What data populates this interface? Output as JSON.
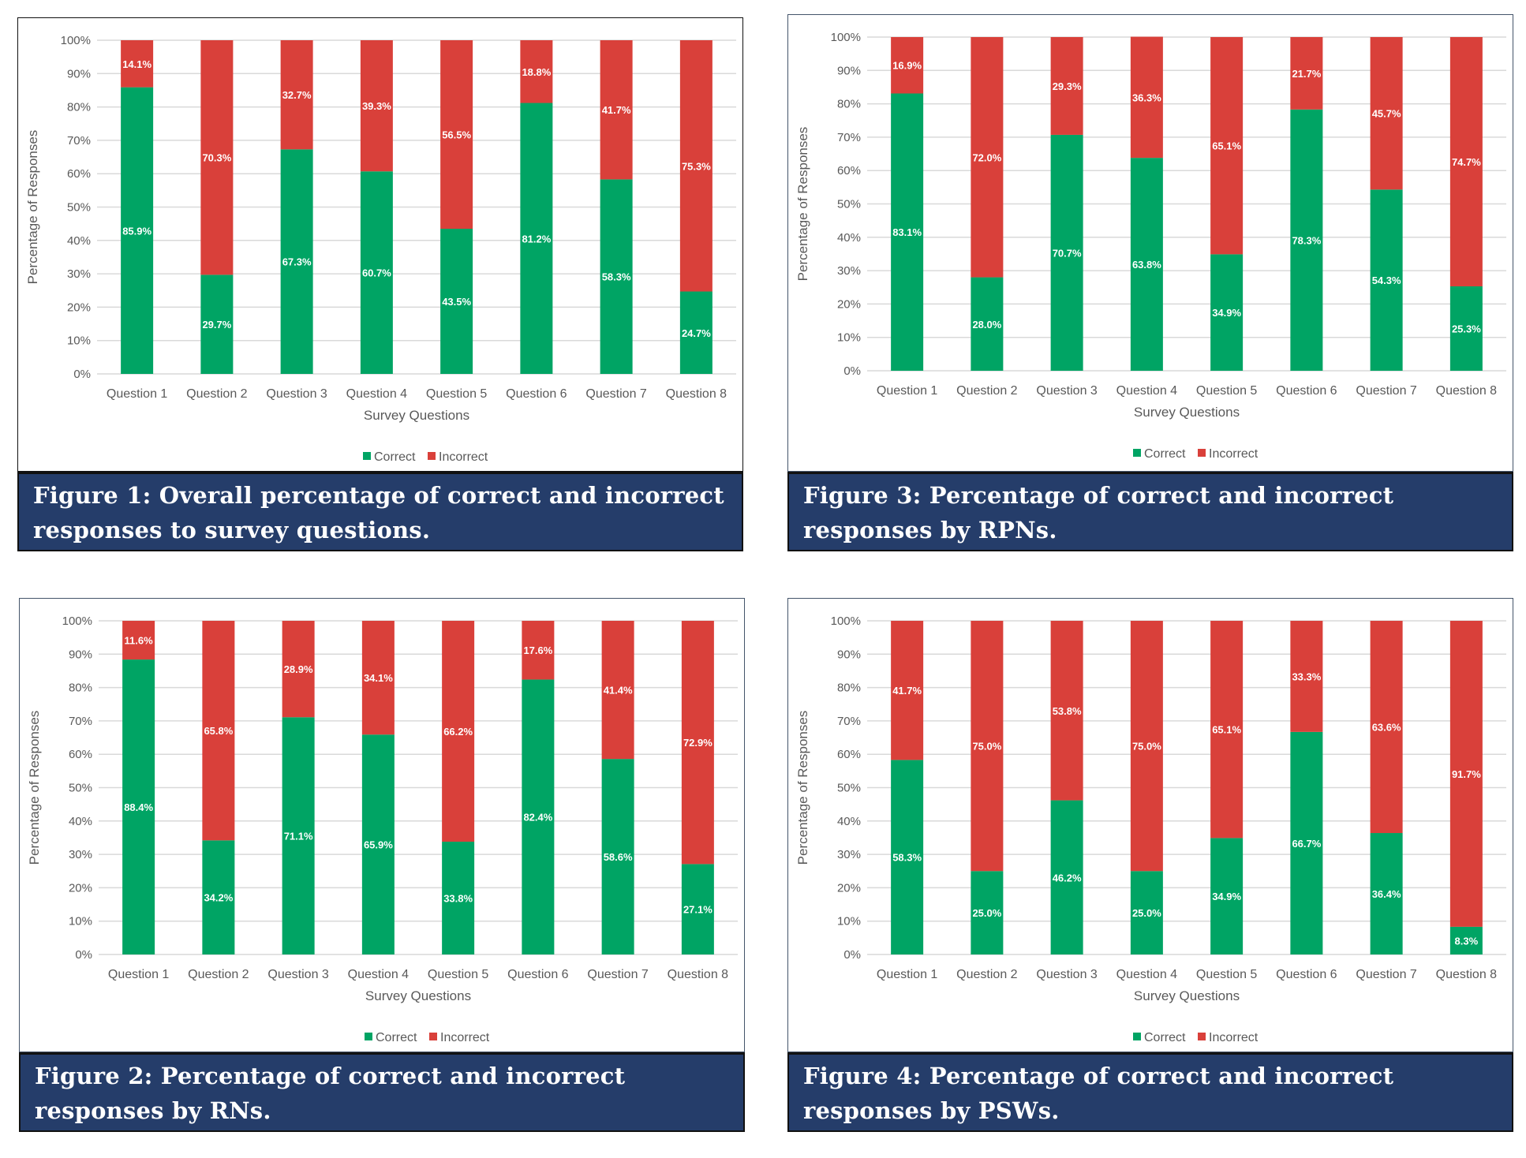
{
  "colors": {
    "correct": "#00A464",
    "incorrect": "#D9403A",
    "grid": "#D9D9D9",
    "caption_bg": "#253D6A"
  },
  "legend": {
    "correct": "Correct",
    "incorrect": "Incorrect"
  },
  "chart_data": [
    {
      "id": "fig1",
      "type": "bar",
      "stacked": true,
      "title": "Figure 1: Overall percentage of correct and incorrect responses to survey questions.",
      "xlabel": "Survey Questions",
      "ylabel": "Percentage of Responses",
      "ylim": [
        0,
        100
      ],
      "yticks": [
        "0%",
        "10%",
        "20%",
        "30%",
        "40%",
        "50%",
        "60%",
        "70%",
        "80%",
        "90%",
        "100%"
      ],
      "grid": true,
      "legend_position": "bottom",
      "categories": [
        "Question 1",
        "Question 2",
        "Question 3",
        "Question 4",
        "Question 5",
        "Question 6",
        "Question 7",
        "Question 8"
      ],
      "series": [
        {
          "name": "Correct",
          "values": [
            85.9,
            29.7,
            67.3,
            60.7,
            43.5,
            81.2,
            58.3,
            24.7
          ]
        },
        {
          "name": "Incorrect",
          "values": [
            14.1,
            70.3,
            32.7,
            39.3,
            56.5,
            18.8,
            41.7,
            75.3
          ]
        }
      ]
    },
    {
      "id": "fig3",
      "type": "bar",
      "stacked": true,
      "title": "Figure 3: Percentage of correct and incorrect responses by RPNs.",
      "xlabel": "Survey Questions",
      "ylabel": "Percentage of Responses",
      "ylim": [
        0,
        100
      ],
      "yticks": [
        "0%",
        "10%",
        "20%",
        "30%",
        "40%",
        "50%",
        "60%",
        "70%",
        "80%",
        "90%",
        "100%"
      ],
      "grid": true,
      "legend_position": "bottom",
      "categories": [
        "Question 1",
        "Question 2",
        "Question 3",
        "Question 4",
        "Question 5",
        "Question 6",
        "Question 7",
        "Question 8"
      ],
      "series": [
        {
          "name": "Correct",
          "values": [
            83.1,
            28.0,
            70.7,
            63.8,
            34.9,
            78.3,
            54.3,
            25.3
          ]
        },
        {
          "name": "Incorrect",
          "values": [
            16.9,
            72.0,
            29.3,
            36.3,
            65.1,
            21.7,
            45.7,
            74.7
          ]
        }
      ]
    },
    {
      "id": "fig2",
      "type": "bar",
      "stacked": true,
      "title": "Figure 2: Percentage of correct and incorrect responses by RNs.",
      "xlabel": "Survey Questions",
      "ylabel": "Percentage of Responses",
      "ylim": [
        0,
        100
      ],
      "yticks": [
        "0%",
        "10%",
        "20%",
        "30%",
        "40%",
        "50%",
        "60%",
        "70%",
        "80%",
        "90%",
        "100%"
      ],
      "grid": true,
      "legend_position": "bottom",
      "categories": [
        "Question 1",
        "Question 2",
        "Question 3",
        "Question 4",
        "Question 5",
        "Question 6",
        "Question 7",
        "Question 8"
      ],
      "series": [
        {
          "name": "Correct",
          "values": [
            88.4,
            34.2,
            71.1,
            65.9,
            33.8,
            82.4,
            58.6,
            27.1
          ]
        },
        {
          "name": "Incorrect",
          "values": [
            11.6,
            65.8,
            28.9,
            34.1,
            66.2,
            17.6,
            41.4,
            72.9
          ]
        }
      ]
    },
    {
      "id": "fig4",
      "type": "bar",
      "stacked": true,
      "title": "Figure 4: Percentage of correct and incorrect responses by PSWs.",
      "xlabel": "Survey Questions",
      "ylabel": "Percentage of Responses",
      "ylim": [
        0,
        100
      ],
      "yticks": [
        "0%",
        "10%",
        "20%",
        "30%",
        "40%",
        "50%",
        "60%",
        "70%",
        "80%",
        "90%",
        "100%"
      ],
      "grid": true,
      "legend_position": "bottom",
      "categories": [
        "Question 1",
        "Question 2",
        "Question 3",
        "Question 4",
        "Question 5",
        "Question 6",
        "Question 7",
        "Question 8"
      ],
      "series": [
        {
          "name": "Correct",
          "values": [
            58.3,
            25.0,
            46.2,
            25.0,
            34.9,
            66.7,
            36.4,
            8.3
          ]
        },
        {
          "name": "Incorrect",
          "values": [
            41.7,
            75.0,
            53.8,
            75.0,
            65.1,
            33.3,
            63.6,
            91.7
          ]
        }
      ]
    }
  ]
}
